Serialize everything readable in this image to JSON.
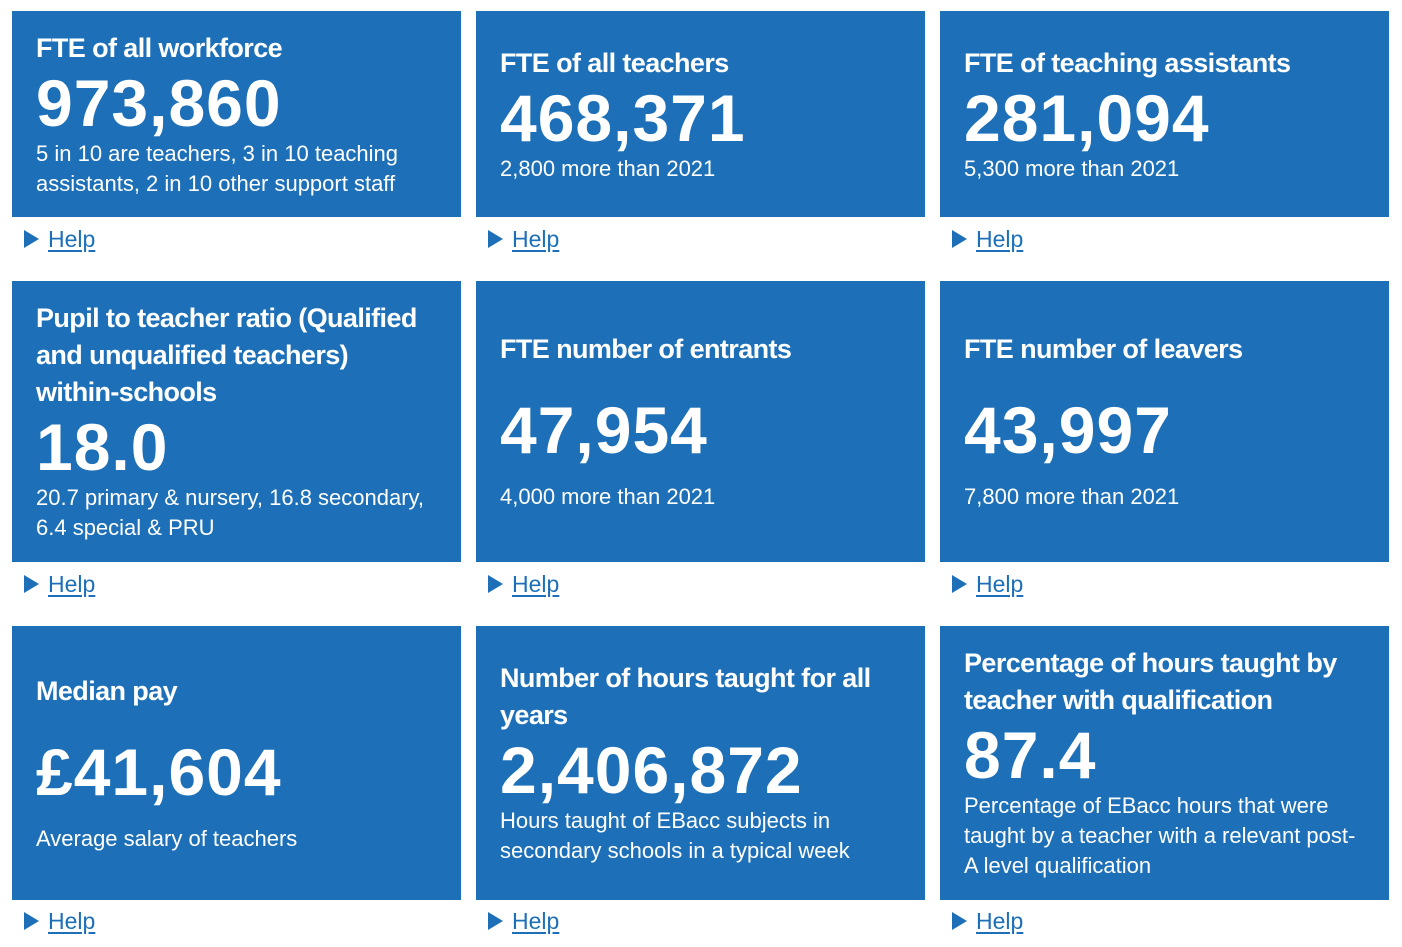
{
  "help_label": "Help",
  "tiles": [
    {
      "title": "FTE of all workforce",
      "value": "973,860",
      "caption": "5 in 10 are teachers, 3 in 10 teaching assistants, 2 in 10 other support staff"
    },
    {
      "title": "FTE of all teachers",
      "value": "468,371",
      "caption": "2,800 more than 2021"
    },
    {
      "title": "FTE of teaching assistants",
      "value": "281,094",
      "caption": "5,300 more than 2021"
    },
    {
      "title": "Pupil to teacher ratio (Qualified and unqualified teachers) within-schools",
      "value": "18.0",
      "caption": "20.7 primary & nursery, 16.8 secondary, 6.4 special & PRU"
    },
    {
      "title": "FTE number of entrants",
      "value": "47,954",
      "caption": "4,000 more than 2021"
    },
    {
      "title": "FTE number of leavers",
      "value": "43,997",
      "caption": "7,800 more than 2021"
    },
    {
      "title": "Median pay",
      "value": "£41,604",
      "caption": "Average salary of teachers"
    },
    {
      "title": "Number of hours taught for all years",
      "value": "2,406,872",
      "caption": "Hours taught of EBacc subjects in secondary schools in a typical week"
    },
    {
      "title": "Percentage of hours taught by teacher with qualification",
      "value": "87.4",
      "caption": "Percentage of EBacc hours that were taught by a teacher with a relevant post-A level qualification"
    }
  ],
  "colors": {
    "tile_background": "#1d70b8",
    "tile_text": "#ffffff",
    "link": "#1d70b8"
  },
  "icons": {
    "help_toggle": "triangle-right-icon"
  }
}
